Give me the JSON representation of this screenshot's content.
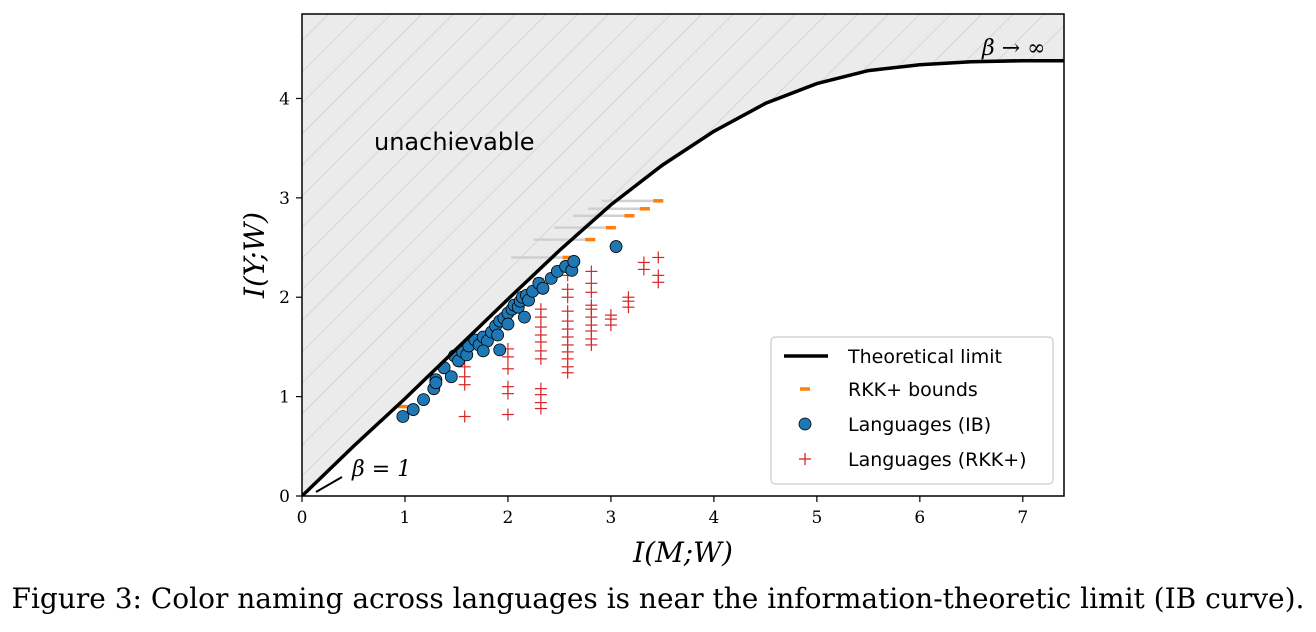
{
  "caption": "Figure 3:  Color naming across languages is near the information-theoretic limit (IB curve).",
  "chart_data": {
    "type": "scatter",
    "title": "",
    "xlabel": "I(M;W)",
    "ylabel": "I(Y;W)",
    "xlim": [
      0,
      7.4
    ],
    "ylim": [
      0,
      4.85
    ],
    "xticks": [
      "0",
      "1",
      "2",
      "3",
      "4",
      "5",
      "6",
      "7"
    ],
    "yticks": [
      "0",
      "1",
      "2",
      "3",
      "4"
    ],
    "grid": false,
    "legend_position": "lower-right",
    "annotations": {
      "unachievable": "unachievable",
      "beta_inf": "β → ∞",
      "beta_one": "β = 1"
    },
    "series": [
      {
        "name": "Theoretical limit",
        "kind": "line",
        "color": "#000000",
        "x": [
          0,
          0.5,
          1,
          1.5,
          2,
          2.5,
          3,
          3.5,
          4,
          4.5,
          5,
          5.5,
          6,
          6.5,
          7,
          7.4
        ],
        "y": [
          0,
          0.5,
          0.98,
          1.48,
          1.98,
          2.47,
          2.93,
          3.33,
          3.67,
          3.95,
          4.15,
          4.28,
          4.34,
          4.37,
          4.38,
          4.38
        ]
      },
      {
        "name": "RKK+ bounds",
        "kind": "dash",
        "color": "#ff7f0e",
        "x": [
          0.98,
          1.6,
          2.0,
          2.3,
          2.58,
          2.8,
          3.0,
          3.18,
          3.33,
          3.46
        ],
        "y": [
          0.9,
          1.46,
          1.86,
          2.18,
          2.4,
          2.58,
          2.7,
          2.82,
          2.89,
          2.97
        ]
      },
      {
        "name": "Languages (IB)",
        "kind": "circle",
        "color": "#1f77b4",
        "x": [
          0.98,
          1.08,
          1.18,
          1.28,
          1.3,
          1.38,
          1.48,
          1.52,
          1.56,
          1.6,
          1.62,
          1.68,
          1.72,
          1.76,
          1.8,
          1.84,
          1.88,
          1.9,
          1.92,
          1.96,
          2.0,
          2.04,
          2.06,
          2.1,
          2.12,
          2.14,
          2.18,
          2.2,
          2.24,
          2.3,
          2.34,
          2.42,
          2.48,
          2.56,
          2.62,
          2.64,
          3.05,
          1.45,
          1.76,
          1.92,
          1.3,
          2.0,
          2.16
        ],
        "y": [
          0.8,
          0.87,
          0.97,
          1.08,
          1.17,
          1.29,
          1.41,
          1.36,
          1.45,
          1.42,
          1.51,
          1.57,
          1.52,
          1.6,
          1.56,
          1.65,
          1.71,
          1.62,
          1.76,
          1.79,
          1.84,
          1.88,
          1.92,
          1.9,
          1.96,
          2.0,
          2.02,
          1.97,
          2.06,
          2.14,
          2.09,
          2.19,
          2.26,
          2.31,
          2.27,
          2.36,
          2.51,
          1.2,
          1.46,
          1.47,
          1.14,
          1.73,
          1.8
        ]
      },
      {
        "name": "Languages (RKK+)",
        "kind": "plus",
        "color": "#d62728",
        "x": [
          1.58,
          1.58,
          1.58,
          1.58,
          2.0,
          2.0,
          2.0,
          2.0,
          2.0,
          2.0,
          2.32,
          2.32,
          2.32,
          2.32,
          2.32,
          2.32,
          2.32,
          2.32,
          2.32,
          2.32,
          2.32,
          2.58,
          2.58,
          2.58,
          2.58,
          2.58,
          2.58,
          2.58,
          2.58,
          2.58,
          2.58,
          2.58,
          2.58,
          2.81,
          2.81,
          2.81,
          2.81,
          2.81,
          2.81,
          2.81,
          2.81,
          2.81,
          2.81,
          3.0,
          3.0,
          3.0,
          3.17,
          3.17,
          3.17,
          3.32,
          3.32,
          3.46,
          3.46,
          3.46
        ],
        "y": [
          0.8,
          1.12,
          1.2,
          1.3,
          0.82,
          1.03,
          1.1,
          1.28,
          1.4,
          1.48,
          0.88,
          0.94,
          1.02,
          1.08,
          1.38,
          1.46,
          1.55,
          1.62,
          1.7,
          1.8,
          1.88,
          1.24,
          1.3,
          1.38,
          1.45,
          1.52,
          1.6,
          1.68,
          1.76,
          1.86,
          2.0,
          2.08,
          2.22,
          1.52,
          1.58,
          1.66,
          1.72,
          1.8,
          1.88,
          1.92,
          2.05,
          2.14,
          2.26,
          1.72,
          1.78,
          1.82,
          1.9,
          1.96,
          2.0,
          2.28,
          2.35,
          2.15,
          2.22,
          2.4
        ]
      }
    ]
  }
}
